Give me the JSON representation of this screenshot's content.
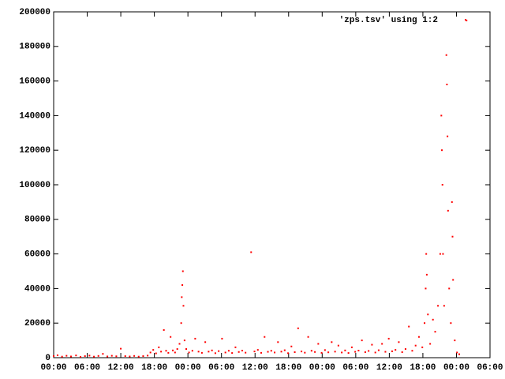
{
  "chart_data": {
    "type": "scatter",
    "series": [
      {
        "name": "'zps.tsv' using 1:2",
        "color": "#ff0000",
        "x": [
          0,
          0.7,
          1.5,
          2.3,
          3.1,
          4,
          4.8,
          5.6,
          6.4,
          7.2,
          8,
          8.8,
          9.6,
          10.4,
          11.2,
          12,
          12.8,
          13.6,
          14.4,
          15.2,
          16,
          16.8,
          17.3,
          17.8,
          18.3,
          18.8,
          19.2,
          19.7,
          20.1,
          20.5,
          20.9,
          21.3,
          21.7,
          22.1,
          22.5,
          22.8,
          22.9,
          23,
          23.1,
          23.2,
          23.4,
          23.7,
          24.2,
          24.8,
          25.3,
          25.9,
          26.5,
          27.1,
          27.7,
          28.3,
          28.9,
          29.5,
          30.1,
          30.7,
          31.3,
          31.9,
          32.5,
          33.1,
          33.7,
          34.3,
          35.3,
          35.9,
          36.5,
          37.1,
          37.7,
          38.3,
          38.9,
          39.5,
          40.1,
          40.7,
          41.3,
          41.9,
          42.5,
          43.1,
          43.7,
          44.3,
          44.9,
          45.5,
          46.1,
          46.7,
          47.3,
          47.9,
          48.5,
          49.1,
          49.7,
          50.3,
          50.9,
          51.5,
          52.1,
          52.7,
          53.3,
          53.9,
          54.5,
          55.1,
          55.7,
          56.3,
          56.9,
          57.5,
          58.1,
          58.7,
          59.3,
          59.9,
          60.5,
          61.1,
          61.7,
          62.3,
          62.9,
          63.5,
          64.1,
          64.7,
          65.3,
          65.9,
          66.3,
          66.5,
          66.6,
          66.7,
          66.9,
          67.3,
          67.8,
          68.2,
          68.7,
          69.1,
          69.3,
          69.4,
          69.5,
          69.6,
          69.8,
          70.2,
          70.3,
          70.4,
          70.5,
          70.7,
          71,
          71.2,
          71.3,
          71.4,
          71.7,
          72.1,
          72.5,
          73.8
        ],
        "values": [
          900,
          1400,
          600,
          1100,
          700,
          1300,
          500,
          900,
          1200,
          600,
          1000,
          2200,
          700,
          1100,
          800,
          5200,
          900,
          700,
          1000,
          600,
          900,
          1200,
          3000,
          4500,
          2500,
          6000,
          3500,
          16000,
          4000,
          2800,
          12000,
          4200,
          3000,
          5000,
          8000,
          20000,
          35000,
          42000,
          50000,
          30000,
          10000,
          5000,
          3000,
          4000,
          11000,
          3500,
          2800,
          9000,
          3500,
          4200,
          2600,
          3800,
          11000,
          3000,
          4000,
          2700,
          6000,
          3300,
          4100,
          2900,
          61000,
          3600,
          4500,
          2800,
          12000,
          3400,
          4000,
          3000,
          9000,
          3500,
          4300,
          2600,
          6500,
          3200,
          17000,
          3600,
          2900,
          12000,
          4000,
          3300,
          8000,
          2800,
          4400,
          3100,
          9000,
          3500,
          7000,
          3000,
          4200,
          2700,
          6000,
          3400,
          4100,
          10000,
          3200,
          3900,
          7500,
          3000,
          4300,
          8000,
          3400,
          11000,
          3700,
          4500,
          9000,
          3200,
          5000,
          18000,
          4000,
          7000,
          12000,
          6000,
          20000,
          40000,
          60000,
          48000,
          25000,
          8000,
          22000,
          15000,
          30000,
          60000,
          140000,
          120000,
          100000,
          60000,
          30000,
          175000,
          158000,
          128000,
          85000,
          40000,
          20000,
          90000,
          70000,
          45000,
          10000,
          3000,
          2000,
          195000
        ]
      }
    ],
    "xlim": [
      0,
      78
    ],
    "xticks": [
      {
        "value": 0,
        "label": "00:00"
      },
      {
        "value": 6,
        "label": "06:00"
      },
      {
        "value": 12,
        "label": "12:00"
      },
      {
        "value": 18,
        "label": "18:00"
      },
      {
        "value": 24,
        "label": "00:00"
      },
      {
        "value": 30,
        "label": "06:00"
      },
      {
        "value": 36,
        "label": "12:00"
      },
      {
        "value": 42,
        "label": "18:00"
      },
      {
        "value": 48,
        "label": "00:00"
      },
      {
        "value": 54,
        "label": "06:00"
      },
      {
        "value": 60,
        "label": "12:00"
      },
      {
        "value": 66,
        "label": "18:00"
      },
      {
        "value": 72,
        "label": "00:00"
      },
      {
        "value": 78,
        "label": "06:00"
      }
    ],
    "ylim": [
      0,
      200000
    ],
    "yticks": [
      0,
      20000,
      40000,
      60000,
      80000,
      100000,
      120000,
      140000,
      160000,
      180000,
      200000
    ],
    "legend": "top-right"
  }
}
